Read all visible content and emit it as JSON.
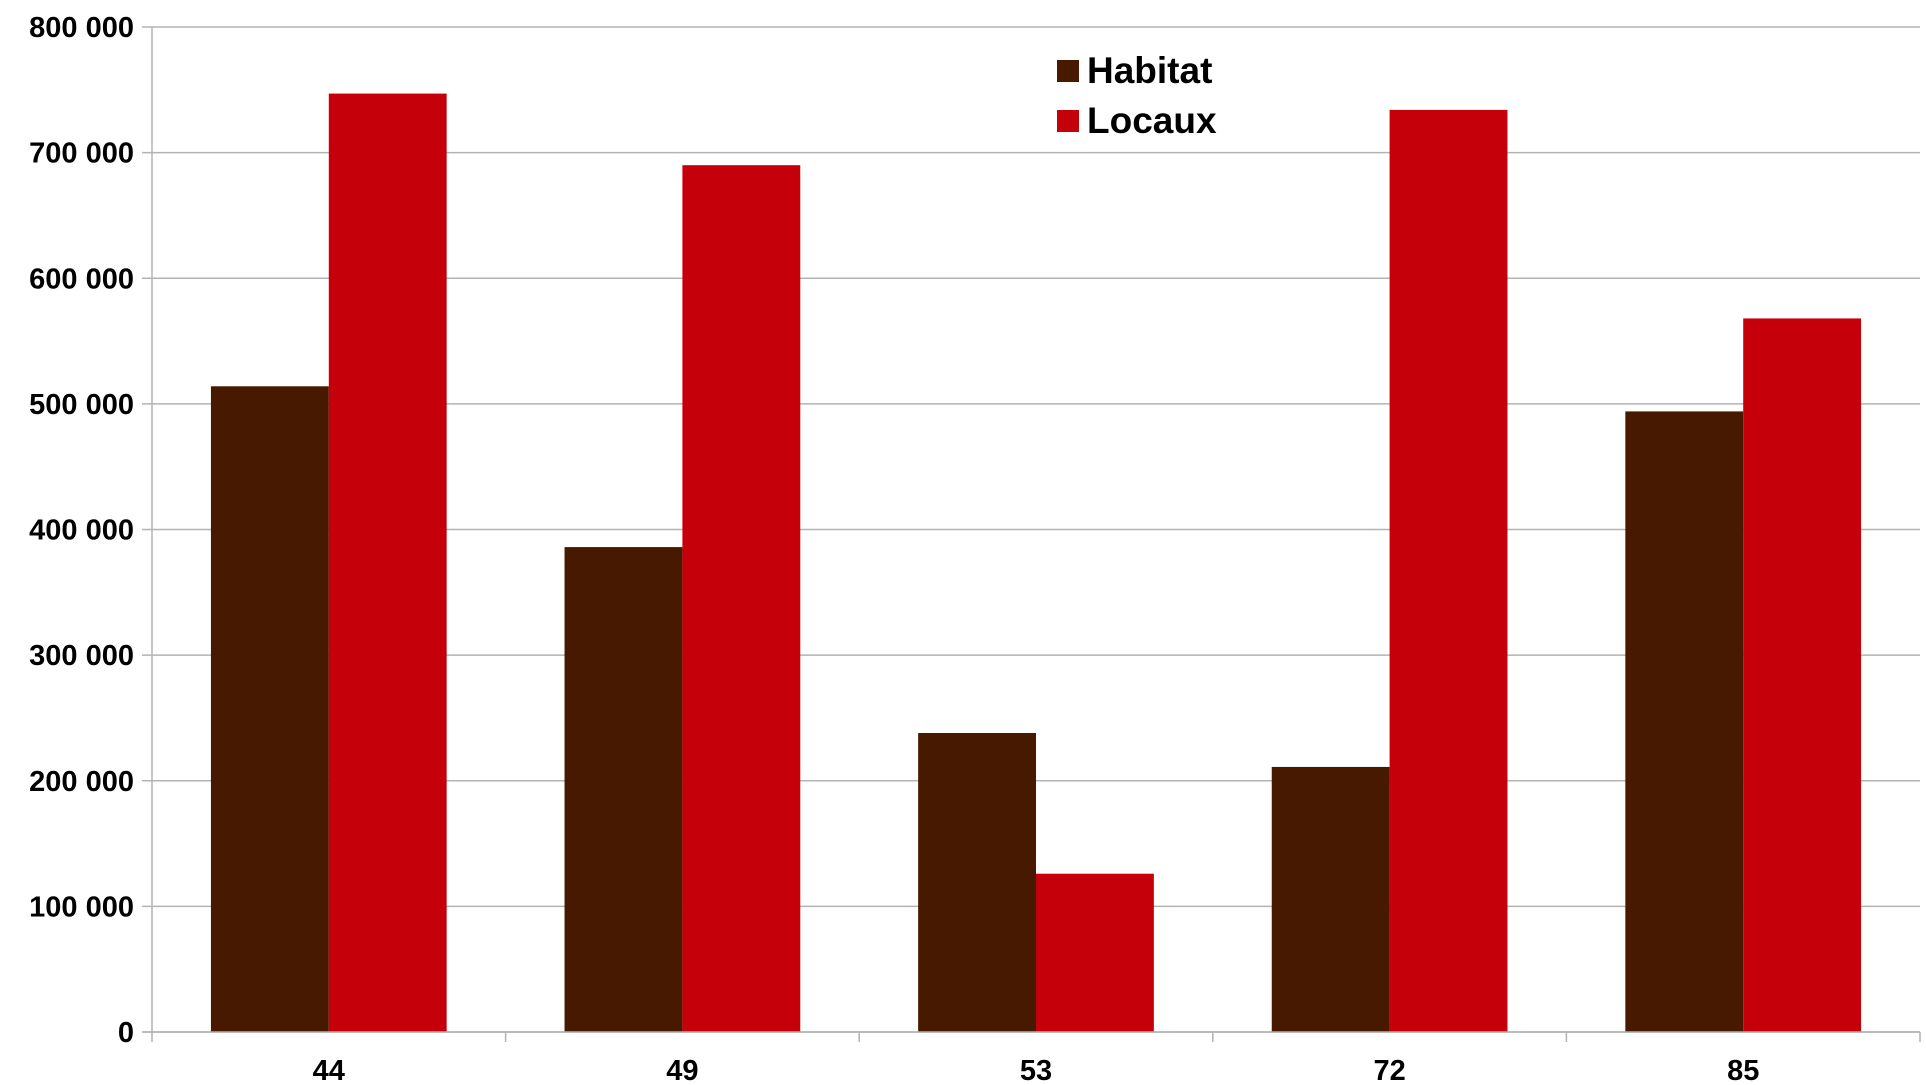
{
  "chart_data": {
    "type": "bar",
    "title": "",
    "xlabel": "",
    "ylabel": "",
    "categories": [
      "44",
      "49",
      "53",
      "72",
      "85"
    ],
    "series": [
      {
        "name": "Habitat",
        "color": "#471a00",
        "values": [
          514000,
          386000,
          238000,
          211000,
          494000
        ]
      },
      {
        "name": "Locaux",
        "color": "#c5000b",
        "values": [
          747000,
          690000,
          126000,
          734000,
          568000
        ]
      }
    ],
    "ylim": [
      0,
      800000
    ],
    "yticks": [
      0,
      100000,
      200000,
      300000,
      400000,
      500000,
      600000,
      700000,
      800000
    ],
    "ytick_labels": [
      "0",
      "100 000",
      "200 000",
      "300 000",
      "400 000",
      "500 000",
      "600 000",
      "700 000",
      "800 000"
    ],
    "grid": true,
    "legend_position": "top-center",
    "colors": {
      "gridline": "#b3b3b3",
      "axis": "#b3b3b3"
    }
  }
}
